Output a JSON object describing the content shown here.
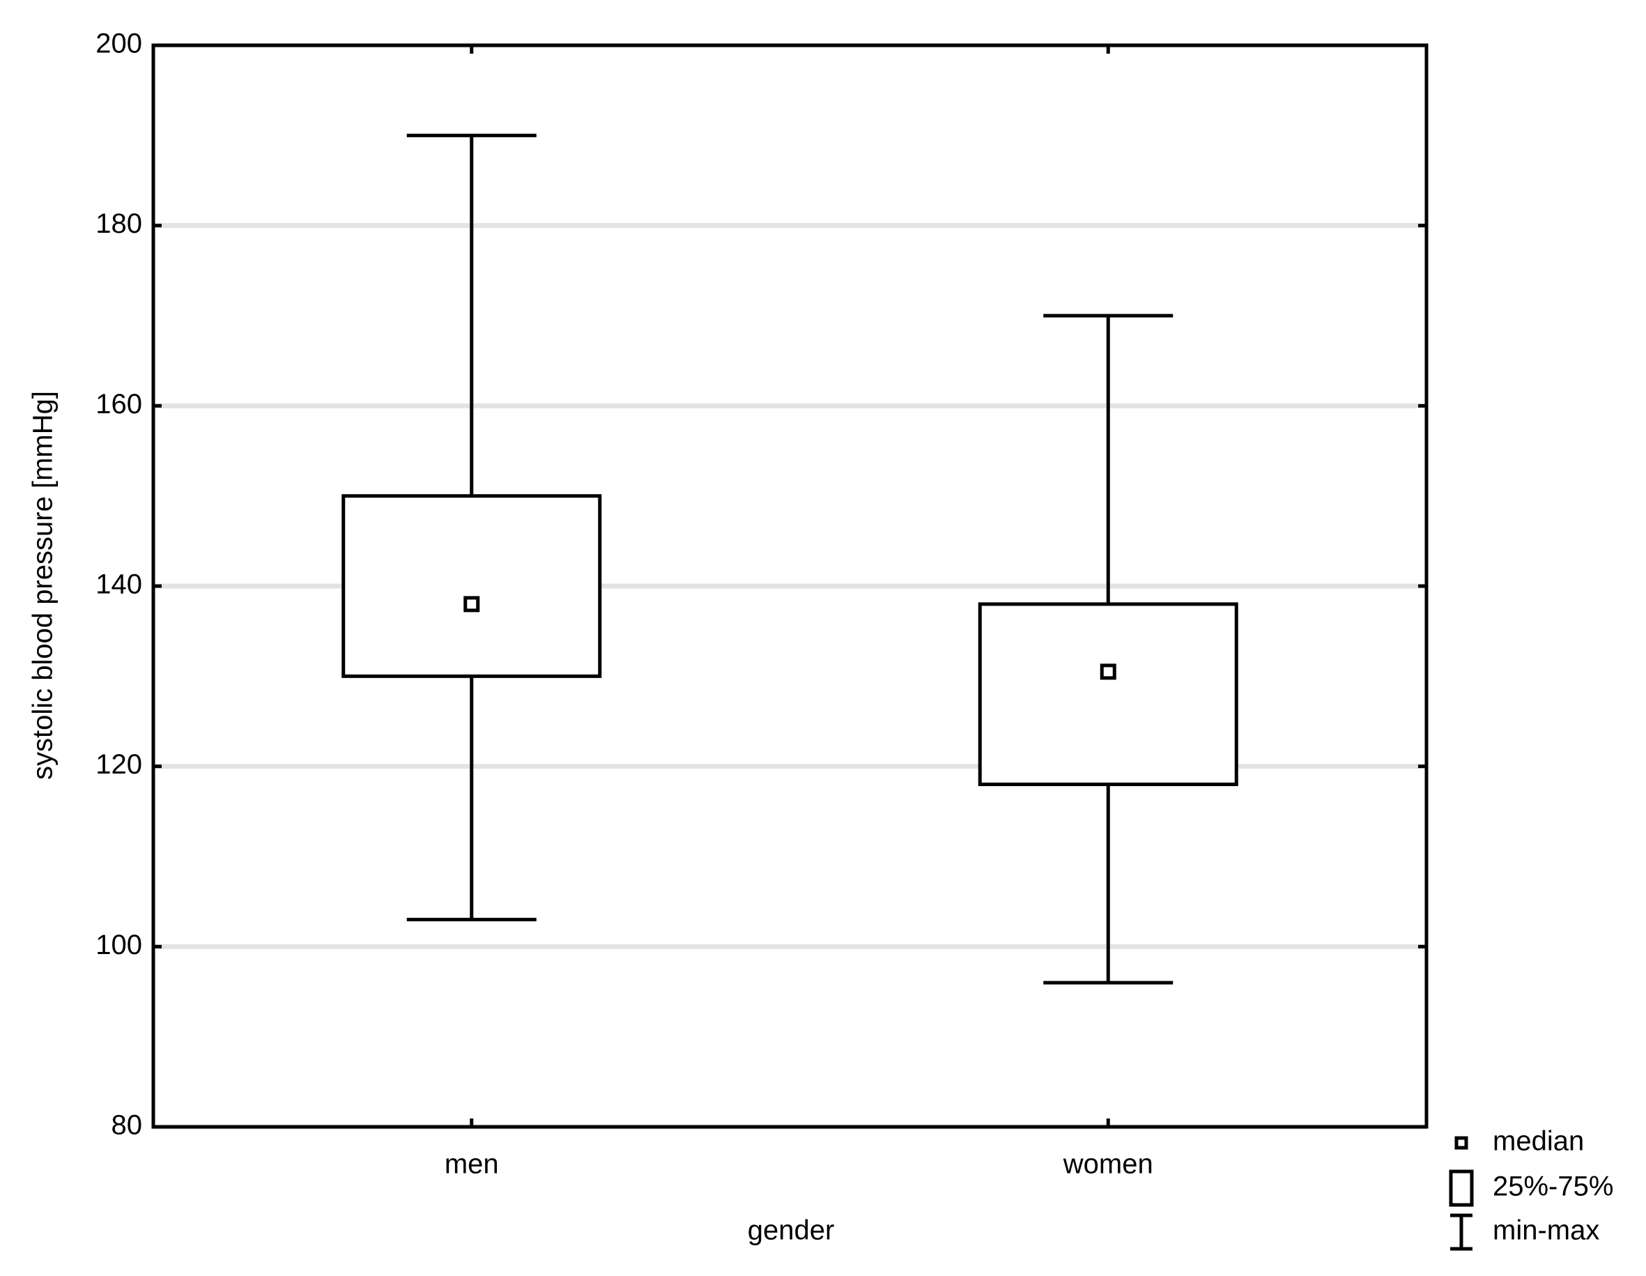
{
  "chart_data": {
    "type": "box",
    "x_label": "gender",
    "y_label": "systolic blood pressure [mmHg]",
    "categories": [
      "men",
      "women"
    ],
    "min": [
      103,
      96
    ],
    "q1": [
      130,
      118
    ],
    "median": [
      138,
      130.5
    ],
    "q3": [
      150,
      138
    ],
    "max": [
      190,
      170
    ],
    "color": "#000000",
    "ylim": [
      80,
      200
    ],
    "yticks": [
      80,
      100,
      120,
      140,
      160,
      180,
      200
    ],
    "grid": true,
    "legend": [
      "median",
      "25%-75%",
      "min-max"
    ],
    "legend_position": "bottom-right"
  }
}
